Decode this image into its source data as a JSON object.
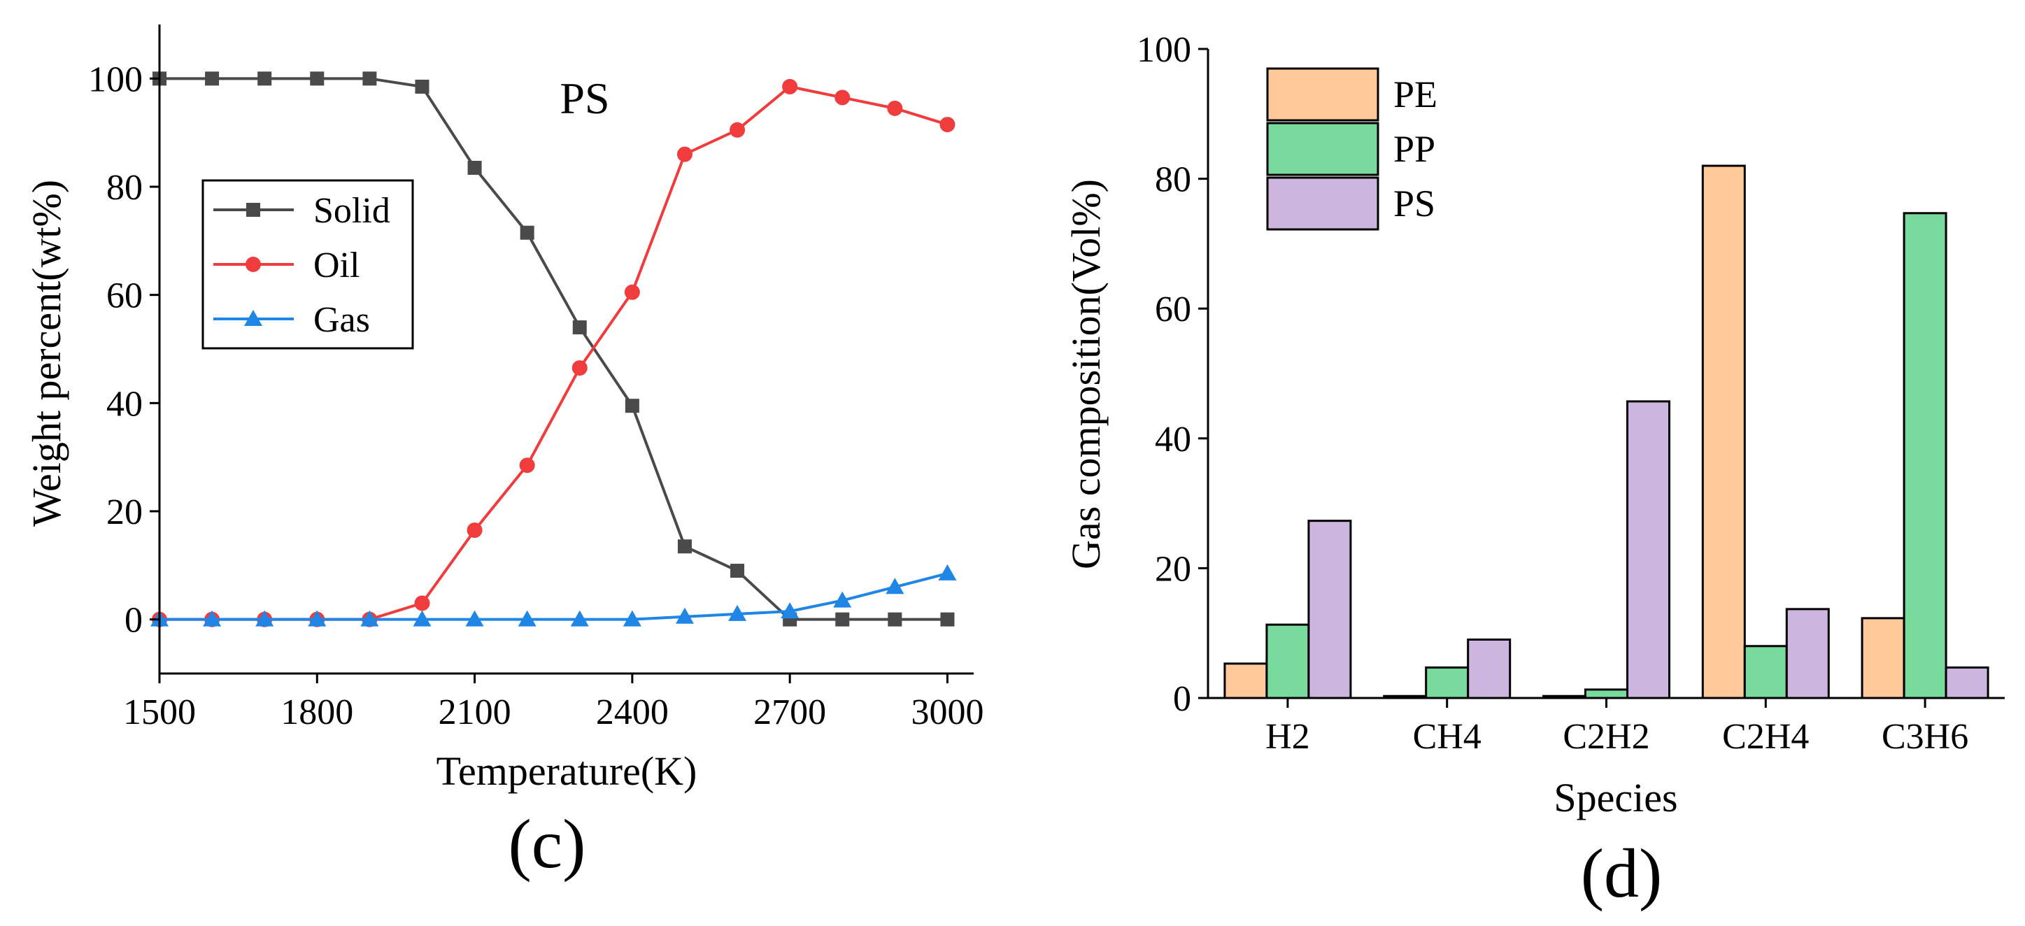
{
  "chart_data": [
    {
      "id": "c",
      "type": "line",
      "panel_label": "(c)",
      "title": "PS",
      "xlabel": "Temperature(K)",
      "ylabel": "Weight percent(wt%)",
      "xlim": [
        1500,
        3050
      ],
      "ylim": [
        -10,
        110
      ],
      "xticks": [
        1500,
        1800,
        2100,
        2400,
        2700,
        3000
      ],
      "yticks": [
        0,
        20,
        40,
        60,
        80,
        100
      ],
      "legend_position": "upper-left",
      "x": [
        1500,
        1600,
        1700,
        1800,
        1900,
        2000,
        2100,
        2200,
        2300,
        2400,
        2500,
        2600,
        2700,
        2800,
        2900,
        3000
      ],
      "series": [
        {
          "name": "Solid",
          "marker": "square",
          "color": "#4a4a4a",
          "values": [
            100,
            100,
            100,
            100,
            100,
            98.5,
            83.5,
            71.5,
            54,
            39.5,
            13.5,
            9,
            0,
            0,
            0,
            0
          ]
        },
        {
          "name": "Oil",
          "marker": "circle",
          "color": "#f03c3c",
          "values": [
            0,
            0,
            0,
            0,
            0,
            3,
            16.5,
            28.5,
            46.5,
            60.5,
            86,
            90.5,
            98.5,
            96.5,
            94.5,
            91.5
          ]
        },
        {
          "name": "Gas",
          "marker": "triangle",
          "color": "#1f86e6",
          "values": [
            0,
            0,
            0,
            0,
            0,
            0,
            0,
            0,
            0,
            0,
            0.5,
            1,
            1.5,
            3.5,
            6,
            8.5
          ]
        }
      ]
    },
    {
      "id": "d",
      "type": "bar",
      "panel_label": "(d)",
      "xlabel": "Species",
      "ylabel": "Gas composition(Vol%)",
      "ylim": [
        0,
        100
      ],
      "yticks": [
        0,
        20,
        40,
        60,
        80,
        100
      ],
      "legend_position": "upper-left",
      "categories": [
        "H2",
        "CH4",
        "C2H2",
        "C2H4",
        "C3H6"
      ],
      "series": [
        {
          "name": "PE",
          "color": "#ffc999",
          "values": [
            5.3,
            0.3,
            0.3,
            82,
            12.3
          ]
        },
        {
          "name": "PP",
          "color": "#78da9c",
          "values": [
            11.3,
            4.7,
            1.3,
            8,
            74.7
          ]
        },
        {
          "name": "PS",
          "color": "#ccb6e0",
          "values": [
            27.3,
            9,
            45.7,
            13.7,
            4.7
          ]
        }
      ]
    }
  ]
}
